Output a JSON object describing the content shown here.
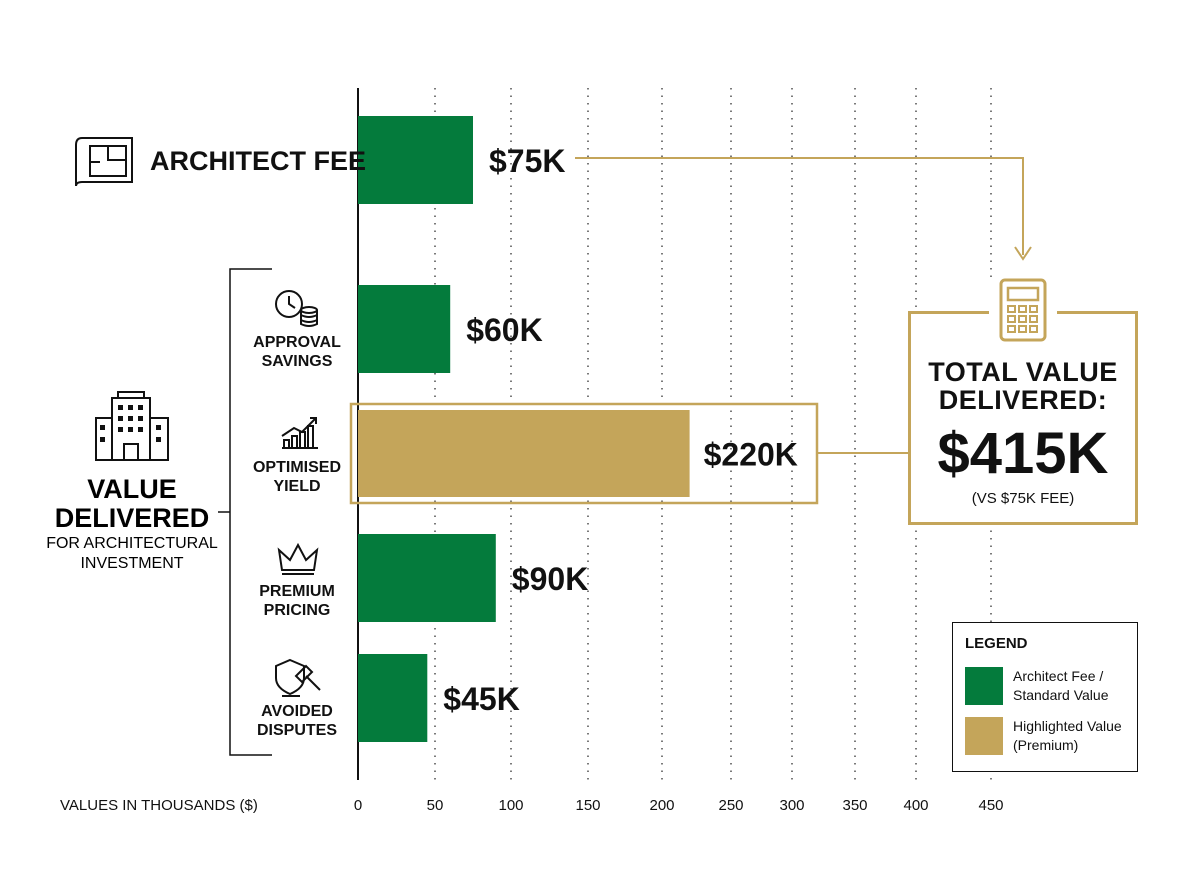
{
  "colors": {
    "standard": "#047b3c",
    "premium": "#c4a55a",
    "grid": "#333333",
    "bracket": "#111111"
  },
  "group_label": {
    "title_line1": "VALUE",
    "title_line2": "DELIVERED",
    "sub_line1": "FOR ARCHITECTURAL",
    "sub_line2": "INVESTMENT",
    "icon": "office-building-icon"
  },
  "total": {
    "title_line1": "TOTAL VALUE",
    "title_line2": "DELIVERED:",
    "value": "$415K",
    "note": "(VS $75K FEE)",
    "icon": "calculator-icon"
  },
  "legend": {
    "title": "LEGEND",
    "items": [
      {
        "line1": "Architect Fee /",
        "line2": "Standard Value",
        "color": "#047b3c"
      },
      {
        "line1": "Highlighted Value",
        "line2": "(Premium)",
        "color": "#c4a55a"
      }
    ]
  },
  "chart_data": {
    "type": "bar",
    "orientation": "horizontal",
    "categories": [
      "ARCHITECT FEE",
      "APPROVAL SAVINGS",
      "OPTIMISED YIELD",
      "PREMIUM PRICING",
      "AVOIDED DISPUTES"
    ],
    "category_lines": [
      [
        "ARCHITECT FEE"
      ],
      [
        "APPROVAL",
        "SAVINGS"
      ],
      [
        "OPTIMISED",
        "YIELD"
      ],
      [
        "PREMIUM",
        "PRICING"
      ],
      [
        "AVOIDED",
        "DISPUTES"
      ]
    ],
    "category_icons": [
      "blueprint-icon",
      "clock-coins-icon",
      "growth-chart-icon",
      "crown-icon",
      "shield-gavel-icon"
    ],
    "values": [
      75,
      60,
      220,
      90,
      45
    ],
    "data_labels": [
      "$75K",
      "$60K",
      "$220K",
      "$90K",
      "$45K"
    ],
    "highlight": [
      false,
      false,
      true,
      false,
      false
    ],
    "xlabel": "VALUES IN THOUSANDS ($)",
    "xticks": [
      0,
      50,
      100,
      150,
      200,
      250,
      300,
      350,
      400,
      450
    ],
    "xlim": [
      0,
      450
    ],
    "grid": "vertical dotted"
  }
}
